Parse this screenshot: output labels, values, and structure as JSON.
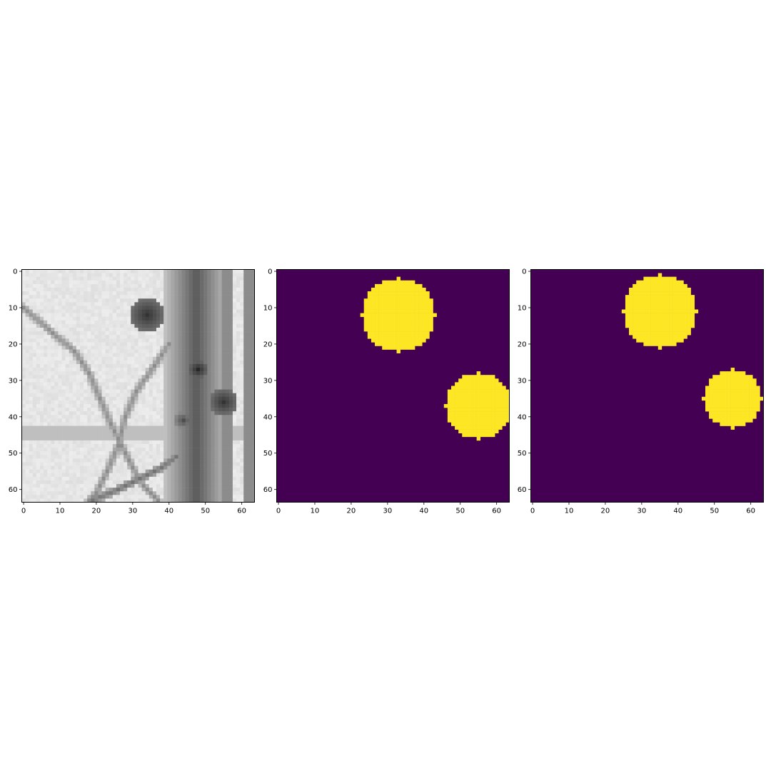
{
  "chart_data": [
    {
      "type": "heatmap",
      "content": "grayscale microscopy image",
      "colormap": "gray",
      "x_ticks": [
        0,
        10,
        20,
        30,
        40,
        50,
        60
      ],
      "y_ticks": [
        0,
        10,
        20,
        30,
        40,
        50,
        60
      ],
      "xlim": [
        -0.5,
        63.5
      ],
      "ylim": [
        63.5,
        -0.5
      ],
      "features": {
        "background_level": 0.93,
        "vertical_band": {
          "x": [
            39,
            56
          ],
          "level": 0.35
        },
        "right_filament": {
          "x": [
            55,
            63
          ],
          "level": 0.55
        },
        "horizontal_band": {
          "y": [
            43,
            46
          ],
          "level": 0.75
        },
        "blobs": [
          {
            "cx": 34,
            "cy": 12,
            "r": 5,
            "level": 0.2
          },
          {
            "cx": 48,
            "cy": 27,
            "r": 2.5,
            "level": 0.15
          },
          {
            "cx": 55,
            "cy": 36,
            "r": 4,
            "level": 0.2
          },
          {
            "cx": 44,
            "cy": 41,
            "r": 2.5,
            "level": 0.3
          }
        ],
        "curves": [
          {
            "points": [
              [
                0,
                10
              ],
              [
                8,
                17
              ],
              [
                14,
                22
              ],
              [
                18,
                28
              ],
              [
                21,
                35
              ],
              [
                24,
                42
              ],
              [
                27,
                48
              ],
              [
                30,
                54
              ],
              [
                33,
                59
              ],
              [
                37,
                63
              ]
            ],
            "level": 0.55
          },
          {
            "points": [
              [
                40,
                20
              ],
              [
                36,
                26
              ],
              [
                31,
                33
              ],
              [
                28,
                40
              ],
              [
                26,
                48
              ],
              [
                23,
                55
              ],
              [
                20,
                61
              ],
              [
                18,
                63
              ]
            ],
            "level": 0.55
          },
          {
            "points": [
              [
                19,
                63
              ],
              [
                26,
                60
              ],
              [
                32,
                57
              ],
              [
                38,
                54
              ],
              [
                42,
                51
              ]
            ],
            "level": 0.45
          }
        ]
      }
    },
    {
      "type": "heatmap",
      "content": "binary mask",
      "colormap": "viridis",
      "x_ticks": [
        0,
        10,
        20,
        30,
        40,
        50,
        60
      ],
      "y_ticks": [
        0,
        10,
        20,
        30,
        40,
        50,
        60
      ],
      "xlim": [
        -0.5,
        63.5
      ],
      "ylim": [
        63.5,
        -0.5
      ],
      "colors": {
        "background": "#440154",
        "foreground": "#fde725"
      },
      "discs": [
        {
          "cx": 33.5,
          "cy": 12.5,
          "r": 10
        },
        {
          "cx": 55.5,
          "cy": 37.5,
          "r": 9
        }
      ]
    },
    {
      "type": "heatmap",
      "content": "binary mask",
      "colormap": "viridis",
      "x_ticks": [
        0,
        10,
        20,
        30,
        40,
        50,
        60
      ],
      "y_ticks": [
        0,
        10,
        20,
        30,
        40,
        50,
        60
      ],
      "xlim": [
        -0.5,
        63.5
      ],
      "ylim": [
        63.5,
        -0.5
      ],
      "colors": {
        "background": "#440154",
        "foreground": "#fde725"
      },
      "discs": [
        {
          "cx": 35.5,
          "cy": 11.5,
          "r": 10
        },
        {
          "cx": 55.5,
          "cy": 35.5,
          "r": 8
        }
      ]
    }
  ]
}
